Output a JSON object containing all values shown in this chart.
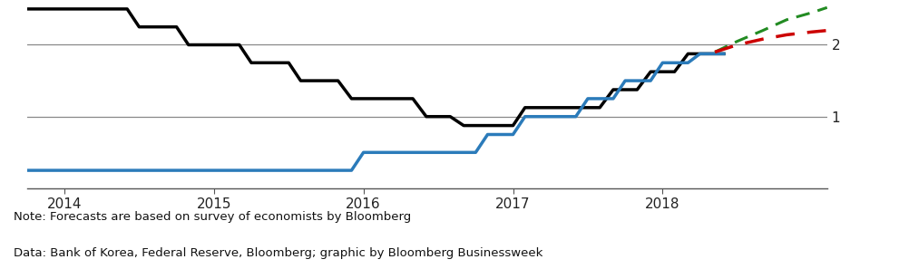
{
  "background_color": "#ffffff",
  "footer_bg": "#e8e8e8",
  "footer_text_line1": "Note: Forecasts are based on survey of economists by Bloomberg",
  "footer_text_line2": "Data: Bank of Korea, Federal Reserve, Bloomberg; graphic by Bloomberg Businessweek",
  "yticks": [
    1,
    2
  ],
  "ylim": [
    0.0,
    2.55
  ],
  "xlim": [
    2013.75,
    2019.1
  ],
  "xticks": [
    2014,
    2015,
    2016,
    2017,
    2018
  ],
  "hline_y1": 1.0,
  "hline_y2": 2.0,
  "black_x": [
    2013.75,
    2014.42,
    2014.5,
    2014.75,
    2014.83,
    2015.17,
    2015.25,
    2015.5,
    2015.58,
    2015.83,
    2015.92,
    2016.33,
    2016.42,
    2016.58,
    2016.67,
    2017.0,
    2017.08,
    2017.58,
    2017.67,
    2017.83,
    2017.92,
    2018.08,
    2018.17,
    2018.42
  ],
  "black_y": [
    2.5,
    2.5,
    2.25,
    2.25,
    2.0,
    2.0,
    1.75,
    1.75,
    1.5,
    1.5,
    1.25,
    1.25,
    1.0,
    1.0,
    0.875,
    0.875,
    1.125,
    1.125,
    1.375,
    1.375,
    1.625,
    1.625,
    1.875,
    1.875
  ],
  "blue_x": [
    2013.75,
    2015.92,
    2016.0,
    2016.75,
    2016.83,
    2017.0,
    2017.08,
    2017.42,
    2017.5,
    2017.67,
    2017.75,
    2017.92,
    2018.0,
    2018.17,
    2018.25,
    2018.42
  ],
  "blue_y": [
    0.25,
    0.25,
    0.5,
    0.5,
    0.75,
    0.75,
    1.0,
    1.0,
    1.25,
    1.25,
    1.5,
    1.5,
    1.75,
    1.75,
    1.875,
    1.875
  ],
  "green_x": [
    2018.35,
    2018.5,
    2018.67,
    2018.83,
    2019.0,
    2019.1
  ],
  "green_y": [
    1.9,
    2.05,
    2.2,
    2.35,
    2.45,
    2.52
  ],
  "red_x": [
    2018.35,
    2018.5,
    2018.67,
    2018.83,
    2019.0,
    2019.1
  ],
  "red_y": [
    1.9,
    2.0,
    2.08,
    2.14,
    2.18,
    2.2
  ],
  "black_color": "#000000",
  "blue_color": "#2b7bba",
  "green_color": "#228B22",
  "red_color": "#cc0000",
  "hline_color": "#888888",
  "axis_color": "#555555",
  "footer_font_size": 9.5,
  "tick_font_size": 11,
  "ytick_font_size": 11
}
